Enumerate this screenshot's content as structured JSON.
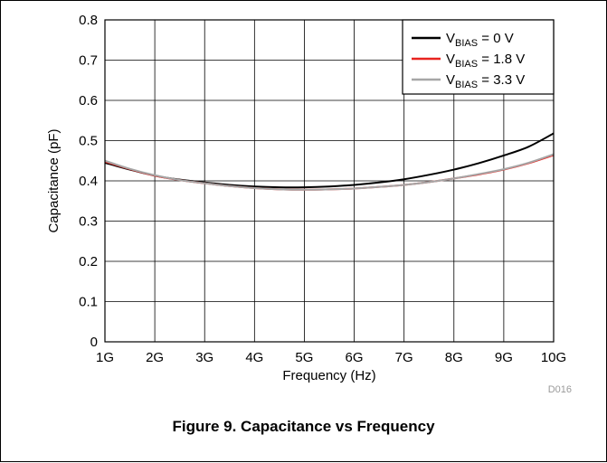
{
  "figure_caption": "Figure 9. Capacitance vs Frequency",
  "doc_code": "D016",
  "chart_data": {
    "type": "line",
    "xlabel": "Frequency (Hz)",
    "ylabel": "Capacitance (pF)",
    "x_tick_labels": [
      "1G",
      "2G",
      "3G",
      "4G",
      "5G",
      "6G",
      "7G",
      "8G",
      "9G",
      "10G"
    ],
    "xlim": [
      1,
      10
    ],
    "x_unit_multiplier": "G",
    "ylim": [
      0,
      0.8
    ],
    "y_ticks": [
      0,
      0.1,
      0.2,
      0.3,
      0.4,
      0.5,
      0.6,
      0.7,
      0.8
    ],
    "grid": true,
    "legend_position": "top-right",
    "series": [
      {
        "label_main": "V",
        "label_sub": "BIAS",
        "label_rest": " = 0 V",
        "color": "#000000",
        "x": [
          1,
          1.5,
          2,
          2.5,
          3,
          3.5,
          4,
          4.5,
          5,
          5.5,
          6,
          6.5,
          7,
          7.5,
          8,
          8.5,
          9,
          9.5,
          10
        ],
        "y": [
          0.445,
          0.428,
          0.413,
          0.403,
          0.396,
          0.39,
          0.386,
          0.384,
          0.384,
          0.386,
          0.39,
          0.396,
          0.404,
          0.415,
          0.428,
          0.444,
          0.463,
          0.485,
          0.518
        ]
      },
      {
        "label_main": "V",
        "label_sub": "BIAS",
        "label_rest": " = 1.8 V",
        "color": "#e8231f",
        "x": [
          1,
          1.5,
          2,
          2.5,
          3,
          3.5,
          4,
          4.5,
          5,
          5.5,
          6,
          6.5,
          7,
          7.5,
          8,
          8.5,
          9,
          9.5,
          10
        ],
        "y": [
          0.448,
          0.429,
          0.413,
          0.402,
          0.394,
          0.387,
          0.382,
          0.379,
          0.378,
          0.379,
          0.381,
          0.385,
          0.39,
          0.397,
          0.406,
          0.416,
          0.428,
          0.444,
          0.464
        ]
      },
      {
        "label_main": "V",
        "label_sub": "BIAS",
        "label_rest": " = 3.3 V",
        "color": "#a6a6a6",
        "x": [
          1,
          1.5,
          2,
          2.5,
          3,
          3.5,
          4,
          4.5,
          5,
          5.5,
          6,
          6.5,
          7,
          7.5,
          8,
          8.5,
          9,
          9.5,
          10
        ],
        "y": [
          0.45,
          0.43,
          0.414,
          0.402,
          0.394,
          0.387,
          0.382,
          0.379,
          0.378,
          0.379,
          0.381,
          0.385,
          0.39,
          0.397,
          0.406,
          0.417,
          0.429,
          0.445,
          0.466
        ]
      }
    ]
  }
}
